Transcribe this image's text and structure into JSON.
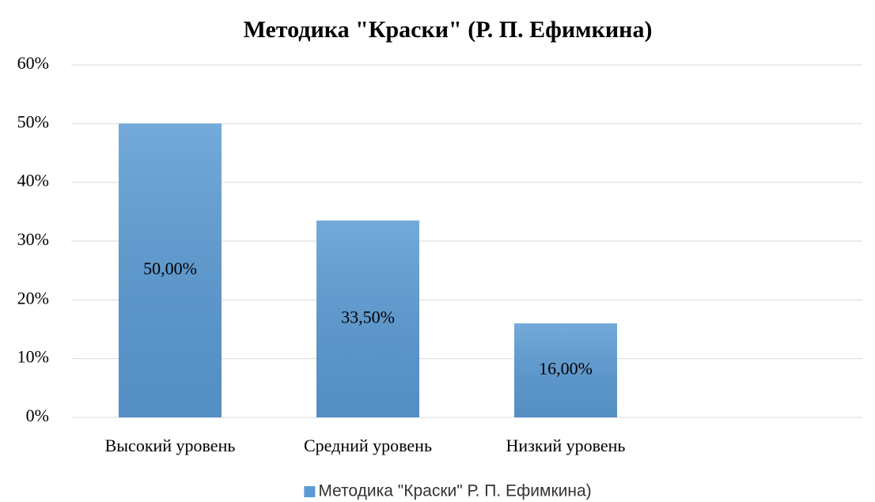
{
  "chart_data": {
    "type": "bar",
    "title": "Методика \"Краски\" (Р. П. Ефимкина)",
    "categories": [
      "Высокий уровень",
      "Средний уровень",
      "Низкий уровень",
      null
    ],
    "series": [
      {
        "name": "Методика \"Краски\" Р. П. Ефимкина)",
        "color": "#5b9bd5",
        "values": [
          50,
          33.5,
          16,
          null
        ],
        "value_labels": [
          "50,00%",
          "33,50%",
          "16,00%",
          null
        ]
      }
    ],
    "ylim": [
      0,
      60
    ],
    "yticks": [
      {
        "value": 0,
        "label": "0%"
      },
      {
        "value": 10,
        "label": "10%"
      },
      {
        "value": 20,
        "label": "20%"
      },
      {
        "value": 30,
        "label": "30%"
      },
      {
        "value": 40,
        "label": "40%"
      },
      {
        "value": 50,
        "label": "50%"
      },
      {
        "value": 60,
        "label": "60%"
      }
    ],
    "grid": true,
    "legend": "bottom"
  }
}
